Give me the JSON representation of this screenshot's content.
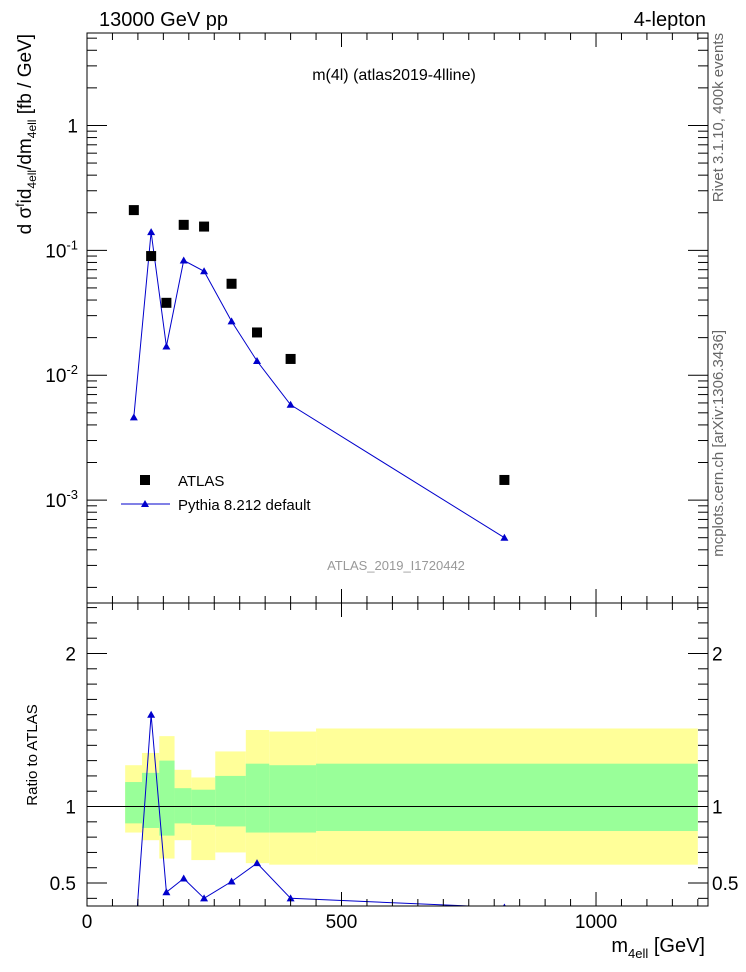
{
  "header": {
    "left": "13000 GeV pp",
    "right": "4-lepton"
  },
  "side_text": {
    "top": "Rivet 3.1.10,  400k events",
    "bottom": "mcplots.cern.ch [arXiv:1306.3436]"
  },
  "chart_data": [
    {
      "type": "scatter",
      "title": "m(4l) (atlas2019-4lline)",
      "watermark": "ATLAS_2019_I1720442",
      "ylabel": {
        "main": "d σ",
        "sup1": "f",
        "mid": "id",
        "sub1": "4ell",
        "mid2": "/dm",
        "sub2": "4ell",
        "units": " [fb / GeV]"
      },
      "yscale": "log",
      "xlim": [
        0,
        1220
      ],
      "ylim": [
        0.00015,
        5.5
      ],
      "yticks": [
        {
          "mant": "10",
          "exp": "-3",
          "value": 0.001
        },
        {
          "mant": "10",
          "exp": "-2",
          "value": 0.01
        },
        {
          "mant": "10",
          "exp": "-1",
          "value": 0.1
        },
        {
          "mant": "1",
          "exp": "",
          "value": 1
        }
      ],
      "legend": {
        "placement": "bottom-left",
        "entries": [
          "ATLAS",
          "Pythia 8.212 default"
        ]
      },
      "series": [
        {
          "name": "ATLAS",
          "marker": "square",
          "color": "#000000",
          "x": [
            92,
            126,
            156,
            190,
            230,
            284,
            334,
            400,
            820
          ],
          "y": [
            0.21,
            0.09,
            0.038,
            0.16,
            0.155,
            0.054,
            0.022,
            0.0135,
            0.00145
          ]
        },
        {
          "name": "Pythia 8.212 default",
          "marker": "triangle",
          "color": "#0000cc",
          "x": [
            92,
            126,
            156,
            190,
            230,
            284,
            334,
            400,
            820
          ],
          "y": [
            0.0046,
            0.14,
            0.017,
            0.083,
            0.068,
            0.027,
            0.013,
            0.0058,
            0.0005
          ]
        }
      ]
    },
    {
      "type": "line",
      "ylabel": "Ratio to ATLAS",
      "xlabel": {
        "main": "m",
        "sub": "4ell",
        "units": " [GeV]"
      },
      "xlim": [
        0,
        1220
      ],
      "ylim": [
        0.35,
        2.33
      ],
      "xticks": [
        {
          "label": "0",
          "value": 0
        },
        {
          "label": "500",
          "value": 500
        },
        {
          "label": "1000",
          "value": 1000
        }
      ],
      "yticks": [
        {
          "label": "0.5",
          "value": 0.5
        },
        {
          "label": "1",
          "value": 1
        },
        {
          "label": "2",
          "value": 2
        }
      ],
      "bands": {
        "edges": [
          75,
          108,
          142,
          172,
          205,
          252,
          312,
          358,
          450,
          1200
        ],
        "yellow": [
          [
            0.83,
            1.27
          ],
          [
            0.78,
            1.35
          ],
          [
            0.66,
            1.46
          ],
          [
            0.78,
            1.24
          ],
          [
            0.65,
            1.19
          ],
          [
            0.7,
            1.36
          ],
          [
            0.63,
            1.5
          ],
          [
            0.62,
            1.49
          ],
          [
            0.62,
            1.51
          ]
        ],
        "green": [
          [
            0.89,
            1.16
          ],
          [
            0.86,
            1.22
          ],
          [
            0.81,
            1.3
          ],
          [
            0.89,
            1.12
          ],
          [
            0.88,
            1.11
          ],
          [
            0.87,
            1.2
          ],
          [
            0.83,
            1.28
          ],
          [
            0.83,
            1.27
          ],
          [
            0.84,
            1.28
          ]
        ]
      },
      "series": [
        {
          "name": "Pythia 8.212 default",
          "color": "#0000cc",
          "x": [
            92,
            126,
            156,
            190,
            230,
            284,
            334,
            400,
            820
          ],
          "y": [
            0.022,
            1.6,
            0.44,
            0.53,
            0.4,
            0.51,
            0.63,
            0.4,
            0.34
          ]
        }
      ]
    }
  ]
}
